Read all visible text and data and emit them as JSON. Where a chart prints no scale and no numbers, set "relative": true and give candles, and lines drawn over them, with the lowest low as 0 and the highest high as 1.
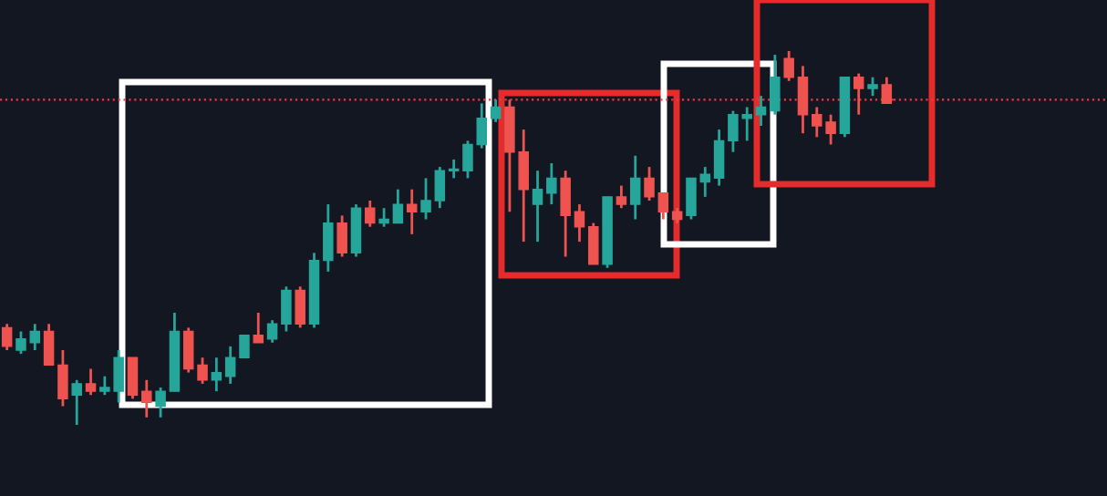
{
  "chart_data": {
    "type": "candlestick",
    "relative": true,
    "categories": [
      null,
      null,
      null,
      null,
      null,
      null,
      null,
      null,
      null,
      null,
      null,
      null,
      null,
      null,
      null,
      null,
      null,
      null,
      null,
      null,
      null,
      null,
      null,
      null,
      null,
      null,
      null,
      null,
      null,
      null,
      null,
      null,
      null,
      null,
      null,
      null,
      null,
      null,
      null,
      null,
      null,
      null,
      null,
      null,
      null,
      null,
      null,
      null,
      null,
      null,
      null,
      null,
      null,
      null,
      null,
      null,
      null,
      null,
      null,
      null,
      null,
      null,
      null,
      null
    ],
    "ohlc": [
      [
        0.26,
        0.27,
        0.2,
        0.21
      ],
      [
        0.2,
        0.25,
        0.19,
        0.23
      ],
      [
        0.22,
        0.27,
        0.2,
        0.25
      ],
      [
        0.25,
        0.27,
        0.16,
        0.16
      ],
      [
        0.16,
        0.2,
        0.05,
        0.07
      ],
      [
        0.08,
        0.12,
        0,
        0.11
      ],
      [
        0.11,
        0.15,
        0.08,
        0.09
      ],
      [
        0.09,
        0.13,
        0.08,
        0.1
      ],
      [
        0.09,
        0.2,
        0.06,
        0.18
      ],
      [
        0.18,
        0.18,
        0.07,
        0.08
      ],
      [
        0.09,
        0.12,
        0.02,
        0.06
      ],
      [
        0.05,
        0.1,
        0.02,
        0.09
      ],
      [
        0.09,
        0.3,
        0.09,
        0.25
      ],
      [
        0.25,
        0.26,
        0.14,
        0.15
      ],
      [
        0.16,
        0.18,
        0.11,
        0.12
      ],
      [
        0.12,
        0.18,
        0.09,
        0.14
      ],
      [
        0.13,
        0.21,
        0.11,
        0.18
      ],
      [
        0.18,
        0.24,
        0.18,
        0.24
      ],
      [
        0.24,
        0.3,
        0.22,
        0.22
      ],
      [
        0.23,
        0.28,
        0.22,
        0.27
      ],
      [
        0.27,
        0.37,
        0.25,
        0.36
      ],
      [
        0.36,
        0.37,
        0.26,
        0.27
      ],
      [
        0.27,
        0.46,
        0.26,
        0.44
      ],
      [
        0.44,
        0.59,
        0.41,
        0.54
      ],
      [
        0.54,
        0.56,
        0.45,
        0.46
      ],
      [
        0.46,
        0.59,
        0.45,
        0.58
      ],
      [
        0.58,
        0.6,
        0.53,
        0.54
      ],
      [
        0.54,
        0.58,
        0.53,
        0.55
      ],
      [
        0.54,
        0.63,
        0.54,
        0.59
      ],
      [
        0.59,
        0.63,
        0.51,
        0.57
      ],
      [
        0.57,
        0.66,
        0.55,
        0.6
      ],
      [
        0.6,
        0.69,
        0.58,
        0.68
      ],
      [
        0.68,
        0.71,
        0.66,
        0.68
      ],
      [
        0.68,
        0.76,
        0.66,
        0.75
      ],
      [
        0.75,
        0.86,
        0.74,
        0.82
      ],
      [
        0.82,
        0.87,
        0.81,
        0.85
      ],
      [
        0.85,
        0.87,
        0.57,
        0.73
      ],
      [
        0.73,
        0.79,
        0.49,
        0.63
      ],
      [
        0.59,
        0.68,
        0.49,
        0.63
      ],
      [
        0.62,
        0.7,
        0.59,
        0.66
      ],
      [
        0.66,
        0.68,
        0.45,
        0.56
      ],
      [
        0.57,
        0.59,
        0.49,
        0.53
      ],
      [
        0.53,
        0.54,
        0.43,
        0.43
      ],
      [
        0.43,
        0.61,
        0.42,
        0.61
      ],
      [
        0.61,
        0.64,
        0.58,
        0.59
      ],
      [
        0.59,
        0.72,
        0.55,
        0.66
      ],
      [
        0.66,
        0.69,
        0.6,
        0.61
      ],
      [
        0.62,
        0.62,
        0.55,
        0.57
      ],
      [
        0.57,
        0.58,
        0.54,
        0.55
      ],
      [
        0.56,
        0.66,
        0.55,
        0.66
      ],
      [
        0.65,
        0.69,
        0.61,
        0.67
      ],
      [
        0.66,
        0.79,
        0.64,
        0.76
      ],
      [
        0.76,
        0.84,
        0.73,
        0.83
      ],
      [
        0.82,
        0.85,
        0.76,
        0.83
      ],
      [
        0.83,
        0.88,
        0.8,
        0.85
      ],
      [
        0.84,
        0.99,
        0.83,
        0.93
      ],
      [
        0.98,
        1.0,
        0.92,
        0.93
      ],
      [
        0.93,
        0.96,
        0.78,
        0.83
      ],
      [
        0.83,
        0.85,
        0.77,
        0.8
      ],
      [
        0.81,
        0.83,
        0.75,
        0.78
      ],
      [
        0.78,
        0.93,
        0.77,
        0.93
      ],
      [
        0.93,
        0.94,
        0.83,
        0.9
      ],
      [
        0.9,
        0.93,
        0.88,
        0.91
      ],
      [
        0.91,
        0.93,
        0.86,
        0.86
      ]
    ],
    "ref_lines": [
      {
        "axis": "y",
        "value": 0.87,
        "color": "#f23645",
        "line_style": "dotted"
      }
    ]
  }
}
